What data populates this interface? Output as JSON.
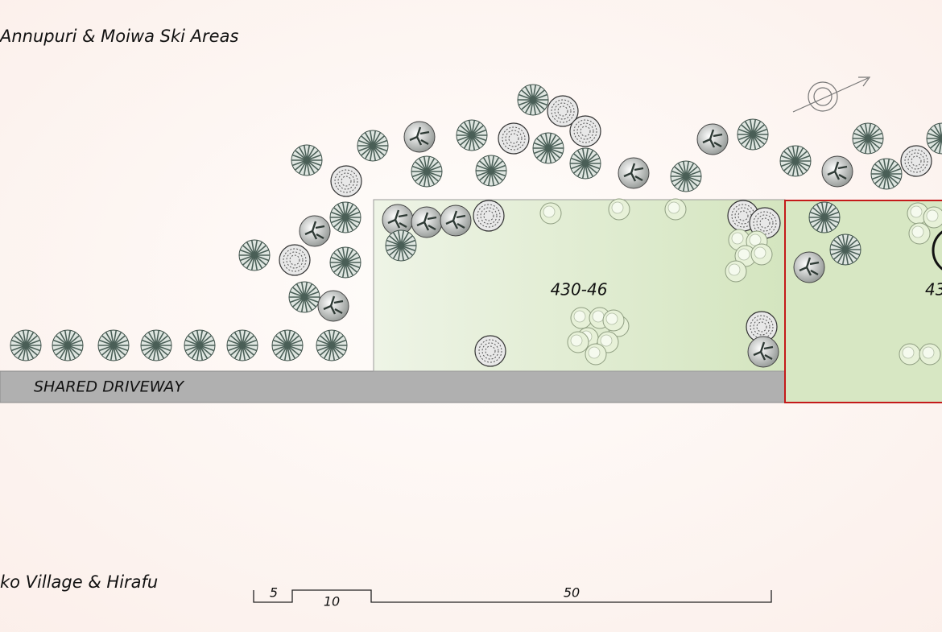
{
  "header": {
    "title": "Annupuri & Moiwa Ski Areas"
  },
  "footer": {
    "direction": "ko Village & Hirafu"
  },
  "site": {
    "driveway": "SHARED DRIVEWAY",
    "lots": [
      "430-46",
      "43"
    ]
  },
  "scale_bar": {
    "labels": [
      "5",
      "10",
      "50"
    ]
  }
}
